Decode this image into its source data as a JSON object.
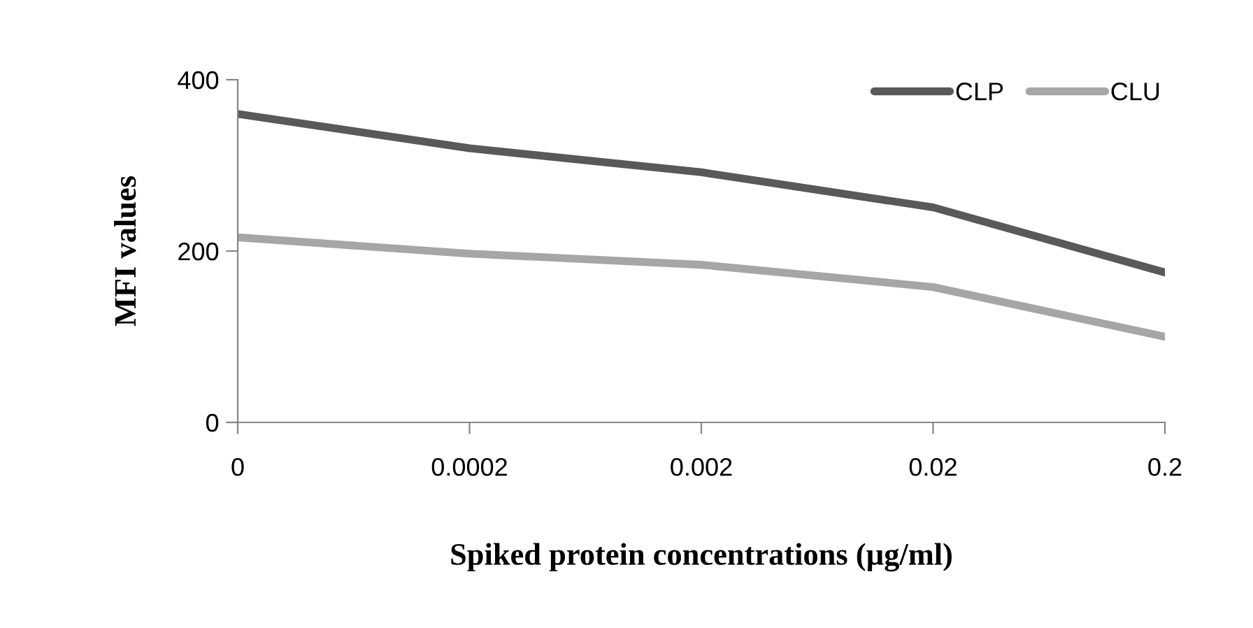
{
  "chart_data": {
    "type": "line",
    "xlabel": "Spiked protein concentrations (µg/ml)",
    "ylabel": "MFI values",
    "categories": [
      "0",
      "0.0002",
      "0.002",
      "0.02",
      "0.2"
    ],
    "series": [
      {
        "name": "CLP",
        "color": "#595959",
        "values": [
          360,
          320,
          292,
          251,
          175
        ]
      },
      {
        "name": "CLU",
        "color": "#a6a6a6",
        "values": [
          216,
          197,
          184,
          158,
          100
        ]
      }
    ],
    "ylim": [
      0,
      400
    ],
    "yticks": [
      0,
      200,
      400
    ],
    "grid": false,
    "legend": "top right",
    "marker": "none",
    "line_style": "solid"
  }
}
